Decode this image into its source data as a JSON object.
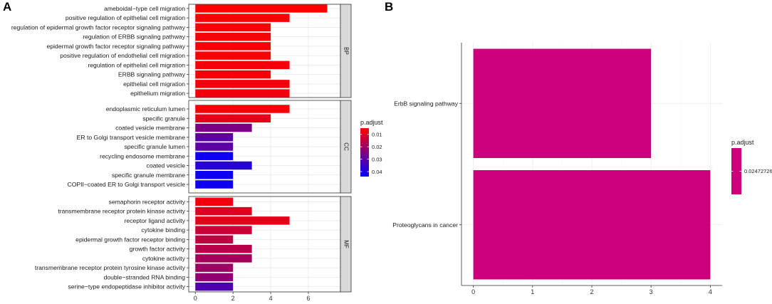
{
  "panel_a_letter": "A",
  "panel_b_letter": "B",
  "chart_data": [
    {
      "type": "bar",
      "orientation": "horizontal",
      "facets": [
        {
          "strip": "BP",
          "categories": [
            "ameboidal−type cell migration",
            "positive regulation of epithelial cell migration",
            "regulation of epidermal growth factor receptor signaling pathway",
            "regulation of ERBB signaling pathway",
            "epidermal growth factor receptor signaling pathway",
            "positive regulation of endothelial cell migration",
            "regulation of epithelial cell migration",
            "ERBB signaling pathway",
            "epithelial cell migration",
            "epithelium migration"
          ],
          "values": [
            7,
            5,
            4,
            4,
            4,
            4,
            5,
            4,
            5,
            5
          ],
          "p_adjust": [
            0.005,
            0.0055,
            0.006,
            0.006,
            0.006,
            0.0062,
            0.0065,
            0.0065,
            0.0068,
            0.007
          ]
        },
        {
          "strip": "CC",
          "categories": [
            "endoplasmic reticulum lumen",
            "specific granule",
            "coated vesicle membrane",
            "ER to Golgi transport vesicle membrane",
            "specific granule lumen",
            "recycling endosome membrane",
            "coated vesicle",
            "specific granule membrane",
            "COPII−coated ER to Golgi transport vesicle"
          ],
          "values": [
            5,
            4,
            3,
            2,
            2,
            2,
            3,
            2,
            2
          ],
          "p_adjust": [
            0.006,
            0.009,
            0.025,
            0.03,
            0.03,
            0.042,
            0.038,
            0.042,
            0.042
          ]
        },
        {
          "strip": "MF",
          "categories": [
            "semaphorin receptor activity",
            "transmembrane receptor protein kinase activity",
            "receptor ligand activity",
            "cytokine binding",
            "epidermal growth factor receptor binding",
            "growth factor activity",
            "cytokine activity",
            "transmembrane receptor protein tyrosine kinase activity",
            "double−stranded RNA binding",
            "serine−type endopeptidase inhibitor activity"
          ],
          "values": [
            2,
            3,
            5,
            3,
            2,
            3,
            3,
            2,
            2,
            2
          ],
          "p_adjust": [
            0.007,
            0.01,
            0.009,
            0.013,
            0.015,
            0.016,
            0.019,
            0.02,
            0.022,
            0.032
          ]
        }
      ],
      "x_ticks": [
        0,
        2,
        4,
        6
      ],
      "xlim": [
        -0.35,
        7.7
      ],
      "legend": {
        "title": "p.adjust",
        "ticks": [
          0.01,
          0.02,
          0.03,
          0.04
        ],
        "range": [
          0.005,
          0.044
        ],
        "low_color": "#ff0000",
        "high_color": "#0000ff",
        "position": "right"
      }
    },
    {
      "type": "bar",
      "orientation": "horizontal",
      "categories": [
        "ErbB signaling pathway",
        "Proteoglycans in cancer"
      ],
      "values": [
        3,
        4
      ],
      "p_adjust": [
        0.02472726,
        0.02472726
      ],
      "bar_color": "#cc007a",
      "x_ticks": [
        0,
        1,
        2,
        3,
        4
      ],
      "xlim": [
        -0.2,
        4.2
      ],
      "legend": {
        "title": "p.adjust",
        "ticks": [
          "0.02472726"
        ],
        "color": "#cc007a",
        "position": "right"
      }
    }
  ]
}
